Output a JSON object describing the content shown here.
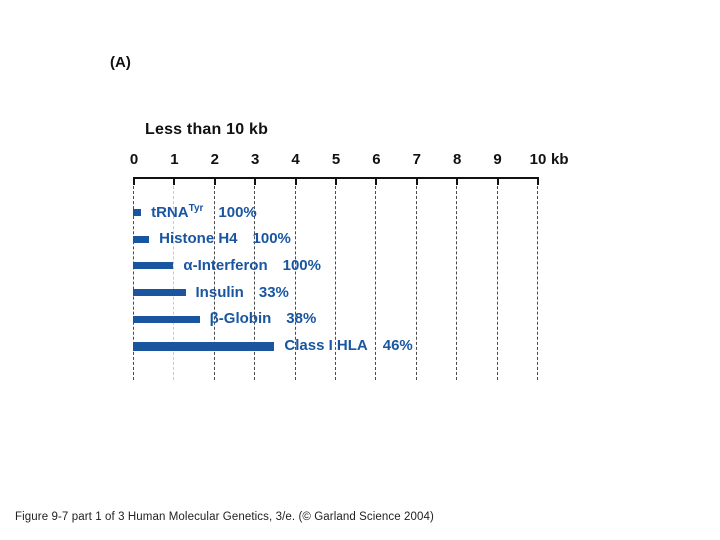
{
  "chart_data": {
    "type": "bar",
    "orientation": "horizontal",
    "panel_label": "(A)",
    "title": "Less than 10 kb",
    "x_axis": {
      "min": 0,
      "max": 10,
      "ticks": [
        0,
        1,
        2,
        3,
        4,
        5,
        6,
        7,
        8,
        9,
        10
      ],
      "unit": "kb"
    },
    "grid": "dashed-vertical",
    "legend": "none",
    "bar_color": "#1a56a0",
    "label_color": "#1a56a0",
    "bars": [
      {
        "name": "tRNA",
        "sup": "Tyr",
        "size_kb": 0.2,
        "percent": "100%"
      },
      {
        "name": "Histone H4",
        "sup": "",
        "size_kb": 0.4,
        "percent": "100%"
      },
      {
        "name": "α-Interferon",
        "sup": "",
        "size_kb": 1.0,
        "percent": "100%"
      },
      {
        "name": "Insulin",
        "sup": "",
        "size_kb": 1.3,
        "percent": "33%"
      },
      {
        "name": "β-Globin",
        "sup": "",
        "size_kb": 1.65,
        "percent": "38%"
      },
      {
        "name": "Class I HLA",
        "sup": "",
        "size_kb": 3.5,
        "percent": "46%"
      }
    ]
  },
  "caption": "Figure 9-7 part 1 of 3  Human Molecular Genetics, 3/e.  (© Garland Science 2004)"
}
